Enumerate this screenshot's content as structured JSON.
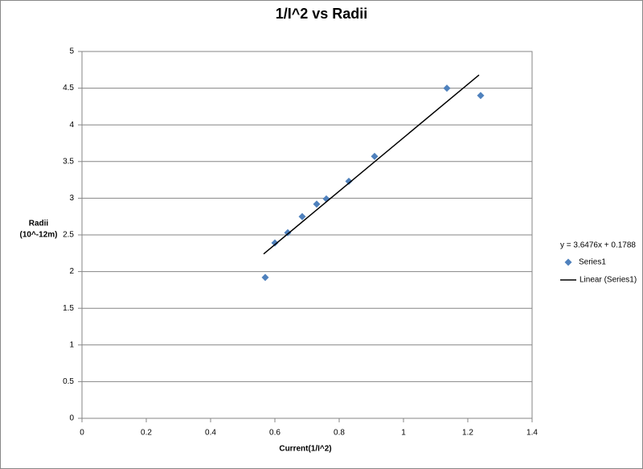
{
  "chart_data": {
    "type": "scatter",
    "title": "1/I^2 vs Radii",
    "x_label": "Current(1/I^2)",
    "y_label": [
      "Radii",
      "(10^-12m)"
    ],
    "annotation": "y = 3.6476x + 0.1788",
    "xlim": [
      0,
      1.4
    ],
    "xticks": [
      0,
      0.2,
      0.4,
      0.6,
      0.8,
      1,
      1.2,
      1.4
    ],
    "ylim": [
      0,
      5
    ],
    "yticks": [
      0,
      0.5,
      1,
      1.5,
      2,
      2.5,
      3,
      3.5,
      4,
      4.5,
      5
    ],
    "grid": true,
    "legend": "right",
    "series": [
      {
        "name": "Series1",
        "color": "#4f81bd",
        "marker": "diamond",
        "x": [
          0.57,
          0.6,
          0.64,
          0.685,
          0.73,
          0.76,
          0.83,
          0.91,
          1.135,
          1.24
        ],
        "values": [
          1.92,
          2.39,
          2.53,
          2.75,
          2.92,
          2.99,
          3.23,
          3.57,
          4.5,
          4.4
        ]
      },
      {
        "name": "Linear (Series1)",
        "color": "#000000",
        "marker": "line",
        "x": [
          0.565,
          1.235
        ],
        "values": [
          2.24,
          4.68
        ]
      }
    ]
  }
}
